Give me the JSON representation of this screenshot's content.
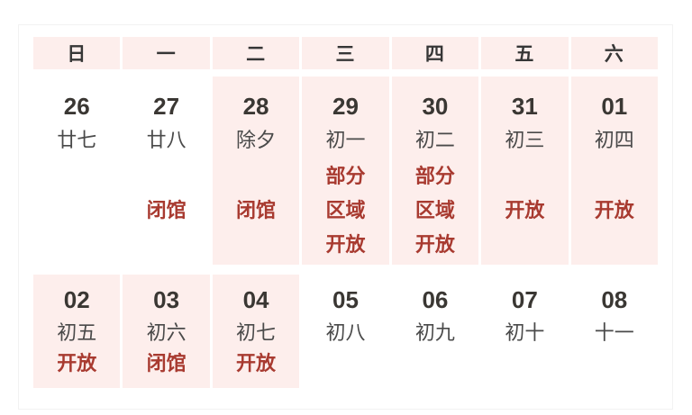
{
  "calendar": {
    "colors": {
      "highlight_pink": "#fdeeec",
      "status_red": "#a83a30",
      "date_dark": "#3a3733",
      "lunar_gray": "#4a4a4a",
      "border_light": "#f2f2f2"
    },
    "weekdays": [
      "日",
      "一",
      "二",
      "三",
      "四",
      "五",
      "六"
    ],
    "rows": [
      {
        "cells": [
          {
            "date": "26",
            "lunar": "廿七",
            "status_lines": [],
            "highlight": false
          },
          {
            "date": "27",
            "lunar": "廿八",
            "status_lines": [
              "",
              "闭馆"
            ],
            "highlight": false
          },
          {
            "date": "28",
            "lunar": "除夕",
            "status_lines": [
              "",
              "闭馆"
            ],
            "highlight": true
          },
          {
            "date": "29",
            "lunar": "初一",
            "status_lines": [
              "部分",
              "区域",
              "开放"
            ],
            "highlight": true
          },
          {
            "date": "30",
            "lunar": "初二",
            "status_lines": [
              "部分",
              "区域",
              "开放"
            ],
            "highlight": true
          },
          {
            "date": "31",
            "lunar": "初三",
            "status_lines": [
              "",
              "开放"
            ],
            "highlight": true
          },
          {
            "date": "01",
            "lunar": "初四",
            "status_lines": [
              "",
              "开放"
            ],
            "highlight": true
          }
        ]
      },
      {
        "cells": [
          {
            "date": "02",
            "lunar": "初五",
            "status_lines": [
              "开放"
            ],
            "highlight": true
          },
          {
            "date": "03",
            "lunar": "初六",
            "status_lines": [
              "闭馆"
            ],
            "highlight": true
          },
          {
            "date": "04",
            "lunar": "初七",
            "status_lines": [
              "开放"
            ],
            "highlight": true
          },
          {
            "date": "05",
            "lunar": "初八",
            "status_lines": [],
            "highlight": false
          },
          {
            "date": "06",
            "lunar": "初九",
            "status_lines": [],
            "highlight": false
          },
          {
            "date": "07",
            "lunar": "初十",
            "status_lines": [],
            "highlight": false
          },
          {
            "date": "08",
            "lunar": "十一",
            "status_lines": [],
            "highlight": false
          }
        ]
      }
    ]
  }
}
